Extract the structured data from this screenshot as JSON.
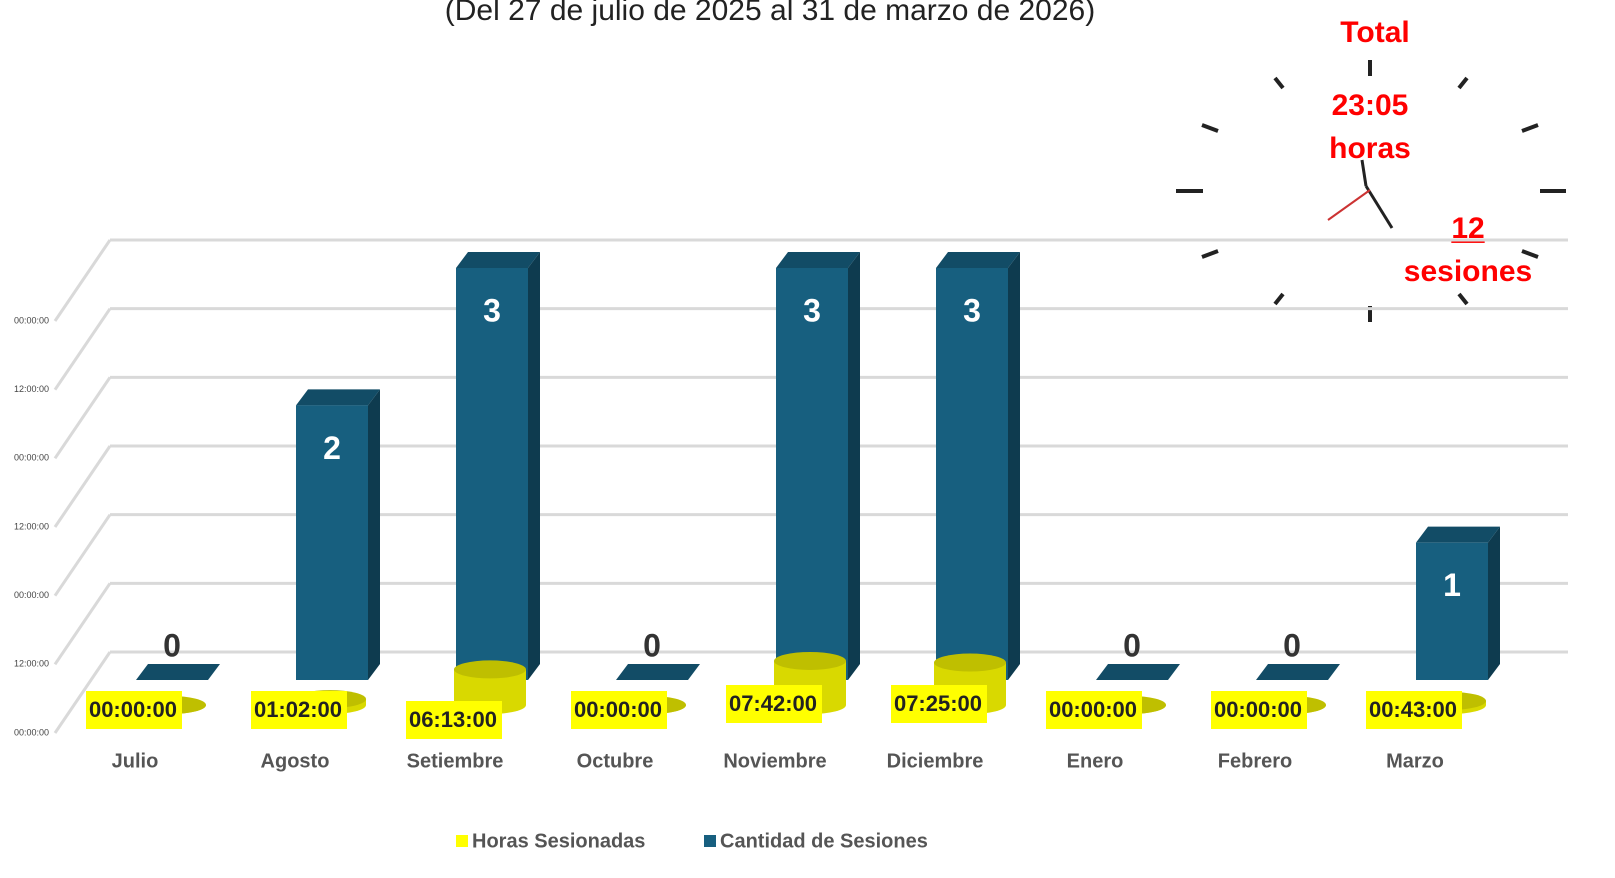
{
  "chart_data": {
    "type": "bar3d",
    "subtitle": "(Del 27 de julio de 2025 al 31 de marzo de 2026)",
    "categories": [
      "Julio",
      "Agosto",
      "Setiembre",
      "Octubre",
      "Noviembre",
      "Diciembre",
      "Enero",
      "Febrero",
      "Marzo"
    ],
    "series": [
      {
        "name": "Horas Sesionadas",
        "color": "#ffff00",
        "shape": "cylinder",
        "values": [
          0,
          0.043056,
          0.259028,
          0,
          0.320833,
          0.309028,
          0,
          0,
          0.029861
        ],
        "value_labels": [
          "00:00:00",
          "01:02:00",
          "06:13:00",
          "00:00:00",
          "07:42:00",
          "07:25:00",
          "00:00:00",
          "00:00:00",
          "00:43:00"
        ]
      },
      {
        "name": "Cantidad de Sesiones",
        "color": "#175f7f",
        "shape": "box",
        "values": [
          0,
          2,
          3,
          0,
          3,
          3,
          0,
          0,
          1
        ]
      }
    ],
    "ylim": [
      0,
      3
    ],
    "yticks": [
      {
        "value": 0,
        "label": "00:00:00"
      },
      {
        "value": 0.5,
        "label": "12:00:00"
      },
      {
        "value": 1,
        "label": "00:00:00"
      },
      {
        "value": 1.5,
        "label": "12:00:00"
      },
      {
        "value": 2,
        "label": "00:00:00"
      },
      {
        "value": 2.5,
        "label": "12:00:00"
      },
      {
        "value": 3,
        "label": "00:00:00"
      }
    ],
    "grid": true,
    "legend": "bottom",
    "annotations": [
      "Total",
      "23:05",
      "horas",
      "12",
      "sesiones"
    ]
  }
}
